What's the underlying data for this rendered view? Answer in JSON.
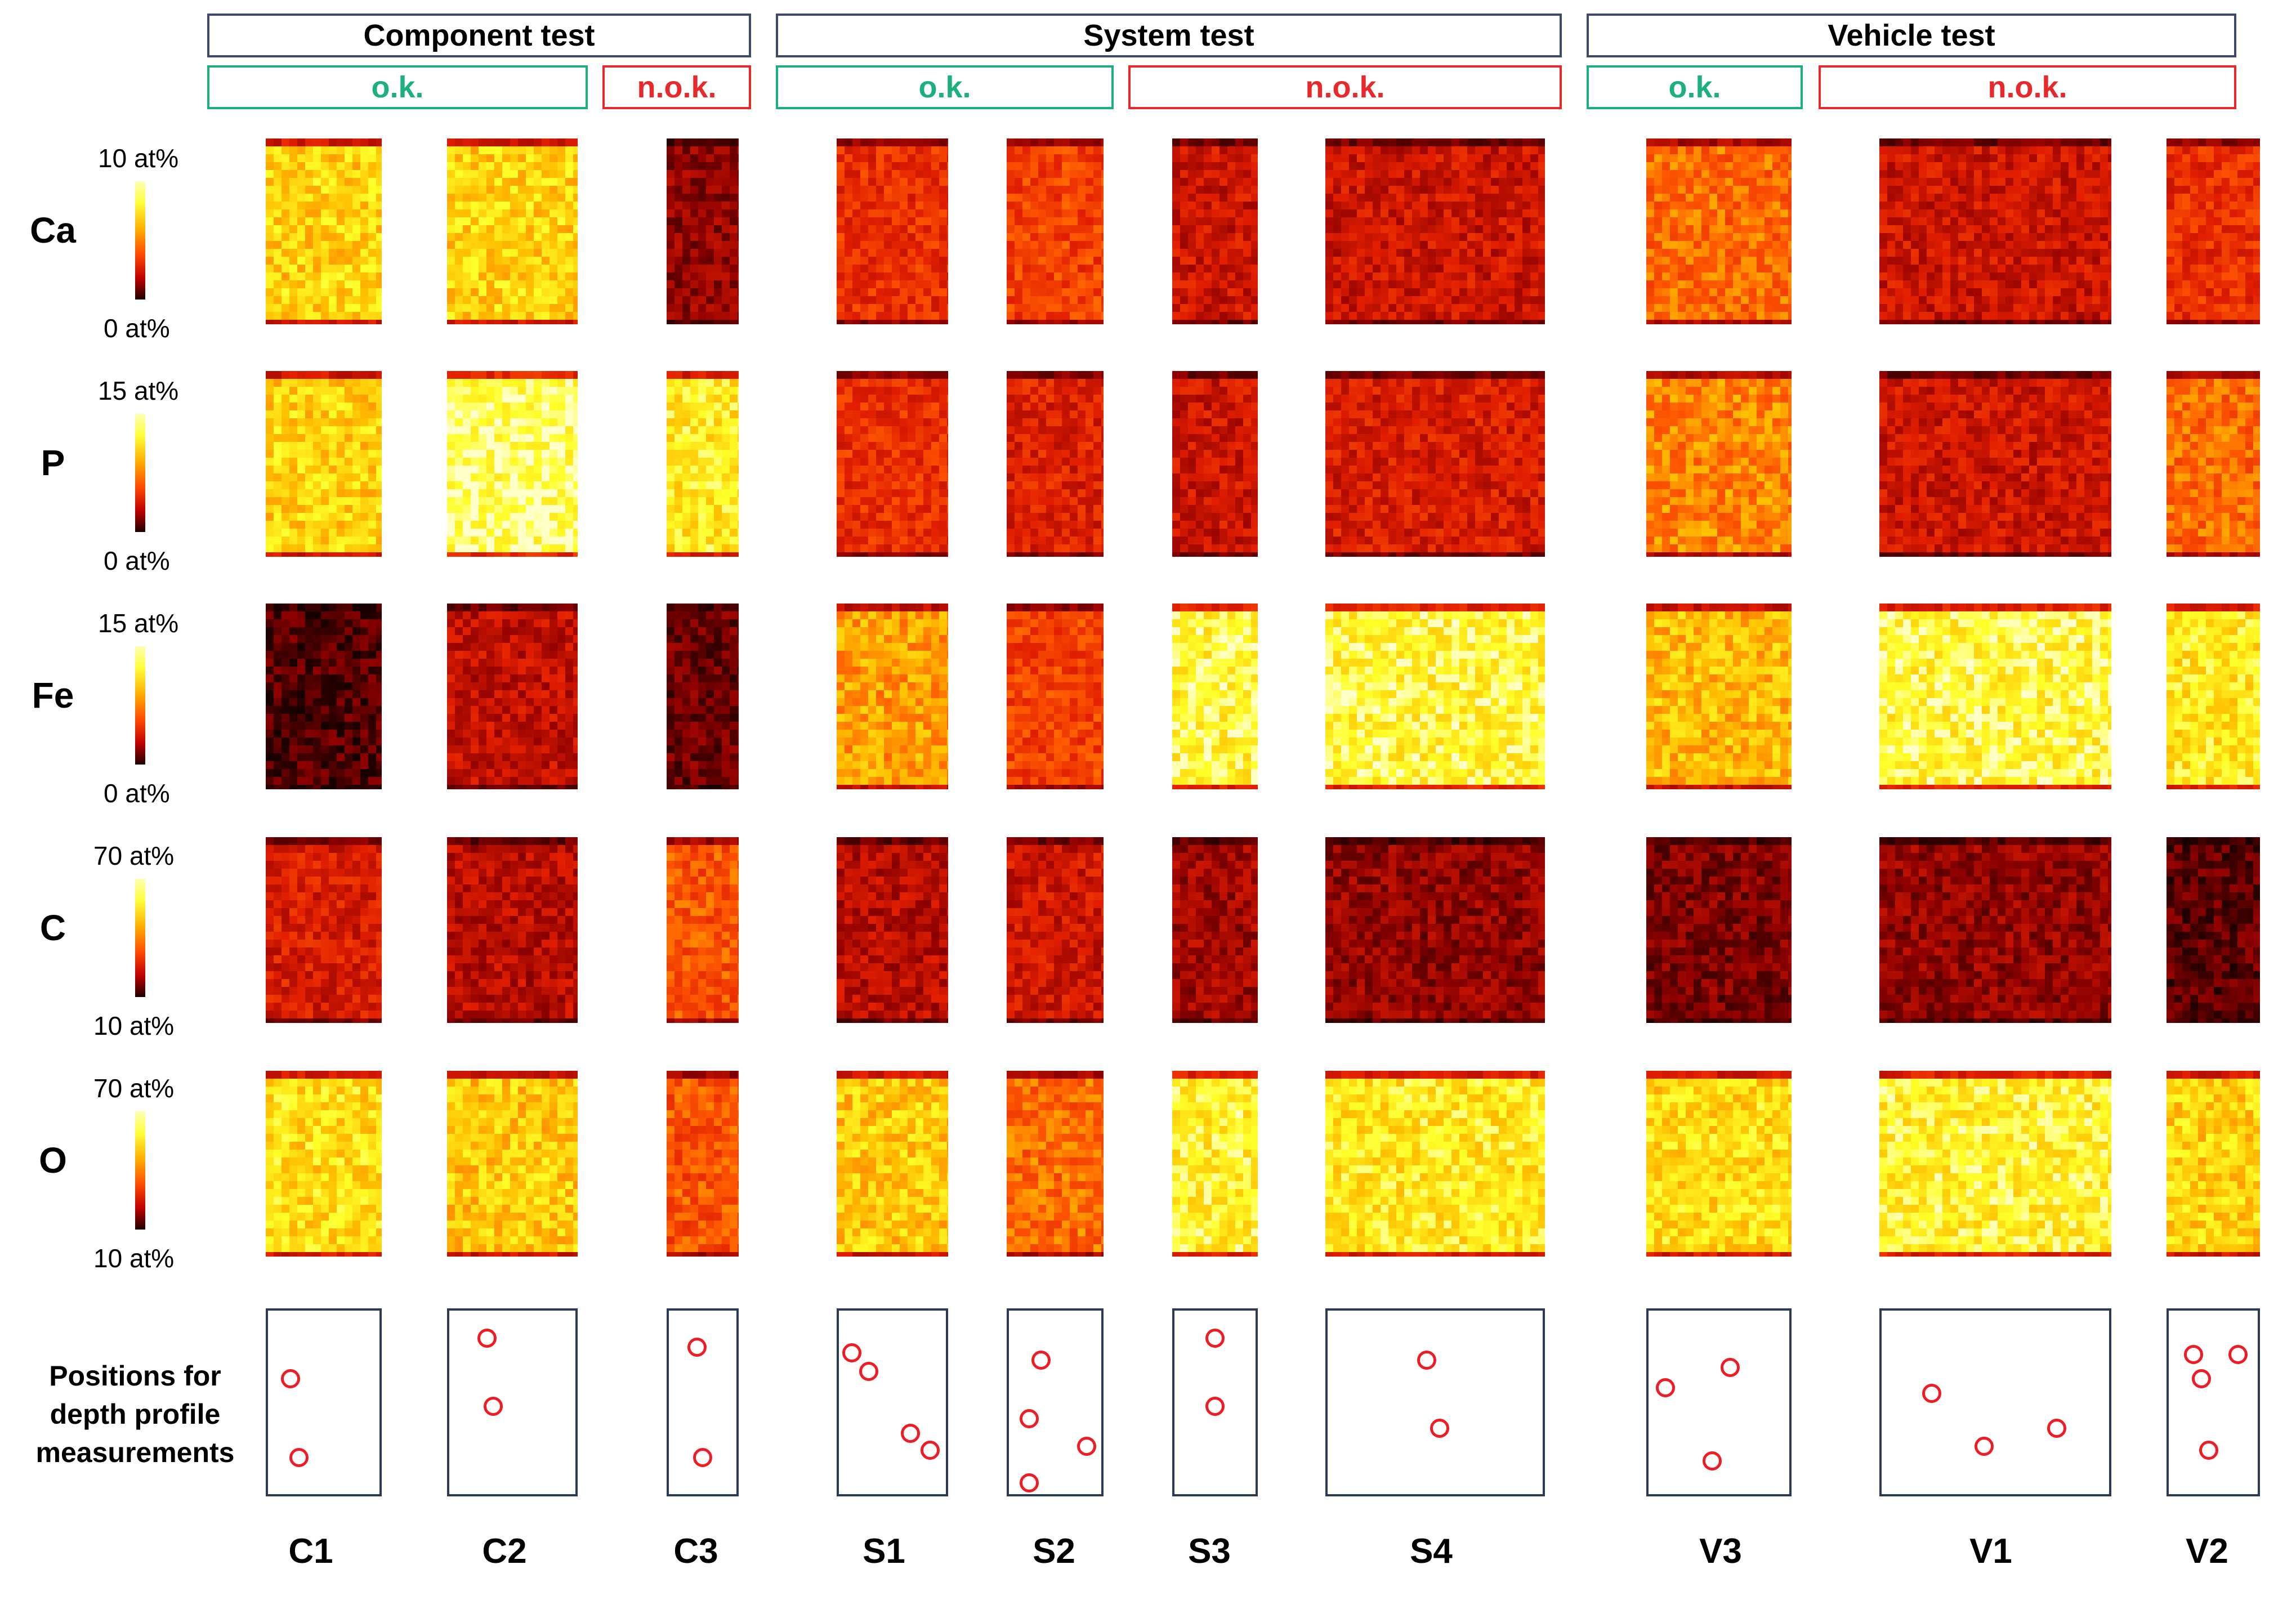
{
  "header": {
    "groups": [
      {
        "name": "Component test",
        "ok": "o.k.",
        "nok": "n.o.k."
      },
      {
        "name": "System test",
        "ok": "o.k.",
        "nok": "n.o.k."
      },
      {
        "name": "Vehicle test",
        "ok": "o.k.",
        "nok": "n.o.k."
      }
    ]
  },
  "elements": [
    {
      "symbol": "Ca",
      "max": "10 at%",
      "min": "0 at%"
    },
    {
      "symbol": "P",
      "max": "15 at%",
      "min": "0 at%"
    },
    {
      "symbol": "Fe",
      "max": "15 at%",
      "min": "0 at%"
    },
    {
      "symbol": "C",
      "max": "70 at%",
      "min": "10 at%"
    },
    {
      "symbol": "O",
      "max": "70 at%",
      "min": "10 at%"
    }
  ],
  "positions_label": "Positions for depth profile measurements",
  "samples": [
    "C1",
    "C2",
    "C3",
    "S1",
    "S2",
    "S3",
    "S4",
    "V3",
    "V1",
    "V2"
  ],
  "map_intensity": {
    "Ca": [
      0.8,
      0.8,
      0.22,
      0.45,
      0.5,
      0.35,
      0.35,
      0.6,
      0.35,
      0.45
    ],
    "P": [
      0.8,
      0.95,
      0.85,
      0.45,
      0.4,
      0.35,
      0.38,
      0.65,
      0.35,
      0.6
    ],
    "Fe": [
      0.1,
      0.32,
      0.15,
      0.7,
      0.5,
      0.9,
      0.9,
      0.75,
      0.9,
      0.85
    ],
    "C": [
      0.38,
      0.3,
      0.55,
      0.3,
      0.35,
      0.25,
      0.22,
      0.18,
      0.22,
      0.12
    ],
    "O": [
      0.82,
      0.78,
      0.55,
      0.78,
      0.6,
      0.88,
      0.85,
      0.82,
      0.88,
      0.8
    ]
  },
  "colors": {
    "ok": "#1cb07a",
    "nok": "#e8282a",
    "frame": "#3d4a6b",
    "marker": "#ee1c25"
  }
}
